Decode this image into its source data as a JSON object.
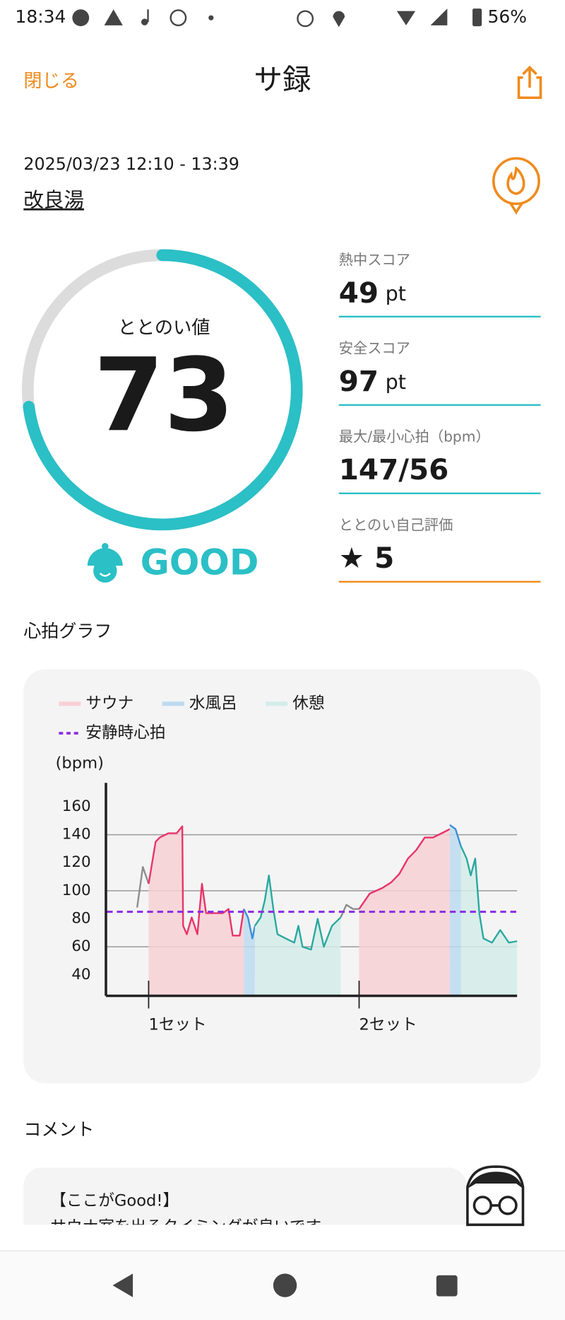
{
  "status_bar": {
    "time": "18:34",
    "battery": "56%"
  },
  "header": {
    "close": "閉じる",
    "title": "サ録"
  },
  "session": {
    "datetime": "2025/03/23 12:10 - 13:39",
    "place": "改良湯"
  },
  "gauge": {
    "label": "ととのい値",
    "value": 73,
    "max": 100,
    "rating": "GOOD"
  },
  "scores": [
    {
      "label": "熱中スコア",
      "value": 49,
      "unit": "pt"
    },
    {
      "label": "安全スコア",
      "value": 97,
      "unit": "pt"
    },
    {
      "label": "最大/最小心拍（bpm）",
      "value": "147/56"
    },
    {
      "label": "ととのい自己評価",
      "value": "★ 5"
    }
  ],
  "chart_section": "心拍グラフ",
  "chart_data": {
    "type": "line",
    "ylabel": "(bpm)",
    "xlim": [
      0,
      100
    ],
    "ylim": [
      25,
      177
    ],
    "yticks": [
      40,
      60,
      80,
      100,
      120,
      140,
      160
    ],
    "gridlines": [
      60,
      100,
      140
    ],
    "xticks": [
      {
        "value": 10.2,
        "label": "1セット"
      },
      {
        "value": 61.5,
        "label": "2セット"
      }
    ],
    "reference_line": {
      "name": "安静時心拍",
      "value": 85,
      "color": "#8a2be2"
    },
    "series": [
      {
        "color": "#8c8c8c",
        "x": [
          7.4,
          8.8,
          10.2,
          null,
          57.0,
          58.4,
          60.0,
          61.5
        ],
        "values": [
          88,
          117,
          105,
          null,
          81,
          90,
          87,
          87
        ]
      },
      {
        "name": "サウナ",
        "color": "#e8336a",
        "fill": "#f7d0d5",
        "x": [
          10.2,
          11.9,
          12.9,
          15.0,
          17.0,
          18.4,
          18.6,
          19.5,
          20.7,
          22.1,
          23.2,
          24.2,
          26.2,
          28.3,
          29.7,
          30.7,
          32.4,
          33.4,
          null,
          61.5,
          64.1,
          67.2,
          69.3,
          71.3,
          73.4,
          75.4,
          77.5,
          79.5,
          81.6,
          83.6
        ],
        "values": [
          105,
          135,
          138,
          141,
          141,
          146,
          75,
          69,
          81,
          69,
          105,
          84,
          84,
          84,
          87,
          68,
          68,
          87,
          null,
          87,
          98,
          102,
          106,
          112,
          123,
          129,
          138,
          138,
          141,
          144
        ]
      },
      {
        "name": "水風呂",
        "color": "#3a8fd6",
        "fill": "#bcdaf0",
        "x": [
          33.4,
          34.4,
          35.5,
          36.1,
          null,
          83.6,
          85.0,
          86.3
        ],
        "values": [
          87,
          81,
          66,
          75,
          null,
          147,
          144,
          132
        ]
      },
      {
        "name": "休憩",
        "color": "#2aa8a0",
        "fill": "#d3ece8",
        "x": [
          36.1,
          37.5,
          38.5,
          39.5,
          40.6,
          41.6,
          43.6,
          45.7,
          46.7,
          47.7,
          49.8,
          51.4,
          52.9,
          54.9,
          57.0,
          null,
          86.3,
          87.7,
          88.7,
          89.8,
          90.8,
          91.8,
          93.9,
          95.9,
          98.0,
          100
        ],
        "values": [
          75,
          81,
          93,
          111,
          87,
          69,
          66,
          63,
          75,
          60,
          58,
          80,
          60,
          75,
          81,
          null,
          132,
          123,
          111,
          123,
          84,
          66,
          63,
          72,
          63,
          64
        ]
      }
    ]
  },
  "comment_section": "コメント",
  "comment": {
    "heading": "【ここがGood!】",
    "body": "サウナ室を出るタイミングが良いです"
  }
}
